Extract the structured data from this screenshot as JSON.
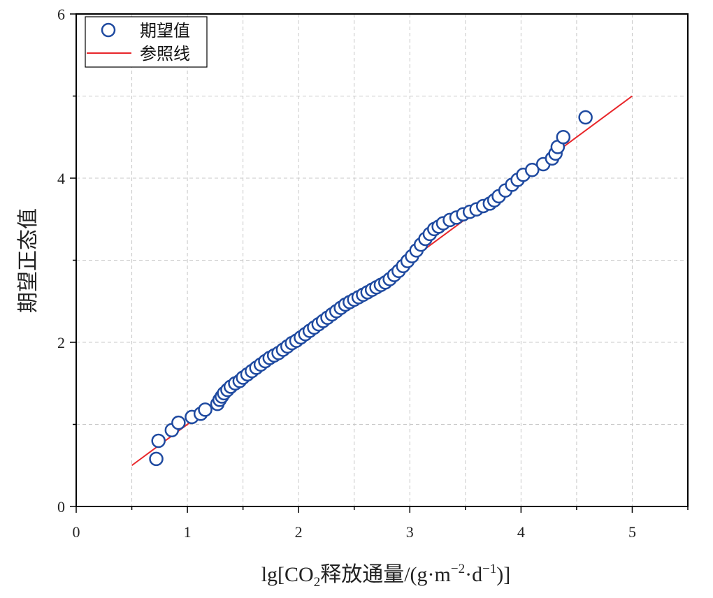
{
  "chart_data": {
    "type": "scatter",
    "xlabel": {
      "prefix": "lg[CO",
      "sub": "2",
      "mid": "释放通量/(g·m",
      "sup1": "−2",
      "mid2": "·d",
      "sup2": "−1",
      "suffix": ")]"
    },
    "ylabel": "期望正态值",
    "xlim": [
      0,
      5.5
    ],
    "ylim": [
      0,
      6
    ],
    "xticks": [
      0,
      1,
      2,
      3,
      4,
      5
    ],
    "yticks": [
      0,
      2,
      4,
      6
    ],
    "grid": true,
    "legend": {
      "position": "top-left",
      "entries": [
        {
          "label": "期望值",
          "marker": "open-circle"
        },
        {
          "label": "参照线",
          "marker": "line"
        }
      ]
    },
    "colors": {
      "points": "#1f4aa0",
      "reference": "#e8262a",
      "grid": "#c8c8c8"
    },
    "series": [
      {
        "name": "期望值",
        "x": [
          0.72,
          0.74,
          0.86,
          0.92,
          1.04,
          1.12,
          1.16,
          1.27,
          1.29,
          1.31,
          1.33,
          1.36,
          1.39,
          1.43,
          1.47,
          1.5,
          1.54,
          1.58,
          1.62,
          1.66,
          1.7,
          1.74,
          1.78,
          1.82,
          1.86,
          1.9,
          1.94,
          1.98,
          2.02,
          2.06,
          2.1,
          2.14,
          2.18,
          2.22,
          2.26,
          2.3,
          2.34,
          2.38,
          2.42,
          2.46,
          2.5,
          2.54,
          2.58,
          2.62,
          2.66,
          2.7,
          2.74,
          2.78,
          2.82,
          2.86,
          2.9,
          2.94,
          2.98,
          3.02,
          3.06,
          3.1,
          3.14,
          3.18,
          3.22,
          3.26,
          3.3,
          3.36,
          3.42,
          3.48,
          3.54,
          3.6,
          3.66,
          3.72,
          3.76,
          3.8,
          3.86,
          3.92,
          3.97,
          4.02,
          4.1,
          4.2,
          4.28,
          4.31,
          4.33,
          4.38,
          4.58
        ],
        "y": [
          0.58,
          0.8,
          0.93,
          1.02,
          1.09,
          1.13,
          1.18,
          1.25,
          1.3,
          1.34,
          1.38,
          1.42,
          1.46,
          1.5,
          1.53,
          1.57,
          1.61,
          1.65,
          1.69,
          1.73,
          1.77,
          1.81,
          1.84,
          1.87,
          1.91,
          1.95,
          1.99,
          2.02,
          2.06,
          2.1,
          2.14,
          2.18,
          2.22,
          2.26,
          2.3,
          2.34,
          2.38,
          2.42,
          2.46,
          2.49,
          2.52,
          2.55,
          2.58,
          2.61,
          2.64,
          2.67,
          2.7,
          2.73,
          2.77,
          2.82,
          2.87,
          2.93,
          2.99,
          3.05,
          3.12,
          3.19,
          3.26,
          3.32,
          3.38,
          3.41,
          3.45,
          3.49,
          3.52,
          3.56,
          3.59,
          3.62,
          3.66,
          3.69,
          3.73,
          3.78,
          3.85,
          3.92,
          3.98,
          4.04,
          4.1,
          4.17,
          4.24,
          4.3,
          4.38,
          4.5,
          4.74
        ]
      },
      {
        "name": "参照线",
        "x": [
          0.5,
          5.0
        ],
        "y": [
          0.5,
          5.0
        ]
      }
    ]
  }
}
